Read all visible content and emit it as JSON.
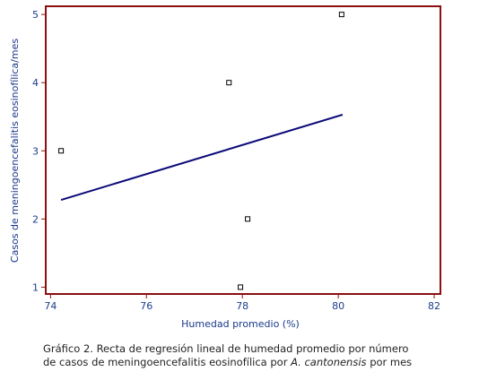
{
  "chart_data": {
    "type": "scatter",
    "x_label": "Humedad promedio (%)",
    "y_label": "Casos de meningoencefalitis eosinofílica/mes",
    "xlim": [
      73.9,
      82.13
    ],
    "ylim": [
      0.9,
      5.12
    ],
    "xticks": [
      74,
      76,
      78,
      80,
      82
    ],
    "yticks": [
      1,
      2,
      3,
      4,
      5
    ],
    "series": [
      {
        "x": [
          74.22,
          77.72,
          80.07,
          78.11,
          77.96
        ],
        "values": [
          3,
          4,
          5,
          2,
          1
        ],
        "color": "#000000"
      }
    ],
    "regression": {
      "x": [
        74.22,
        80.09
      ],
      "values": [
        2.28,
        3.53
      ],
      "color": "#0a0a78"
    },
    "frame_color": "#8b1010",
    "caption": [
      "Gráfico 2. Recta de regresión lineal de humedad promedio por número",
      "de casos de meningoencefalitis eosinofílica por",
      "A. cantonensis",
      "por mes"
    ]
  }
}
